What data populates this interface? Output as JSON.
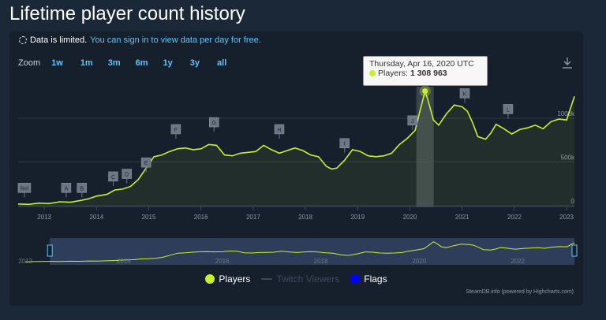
{
  "page": {
    "title": "Lifetime player count history"
  },
  "notice": {
    "text": "Data is limited.",
    "link": "You can sign in to view data per day for free."
  },
  "zoom": {
    "label": "Zoom",
    "buttons": [
      "1w",
      "1m",
      "3m",
      "6m",
      "1y",
      "3y",
      "all"
    ]
  },
  "tooltip": {
    "date": "Thursday, Apr 16, 2020 UTC",
    "series": "Players:",
    "value": "1 308 963"
  },
  "legend": {
    "players": "Players",
    "twitch": "Twitch Viewers",
    "flags": "Flags"
  },
  "credits": "SteamDB.info (powered by Highcharts.com)",
  "colors": {
    "players": "#c9f02c",
    "flags": "#0000ff",
    "link": "#66c0f4",
    "twitch_disabled": "#3b4a5a"
  },
  "icons": {
    "download": "download-icon",
    "notice": "dashed-circle-icon"
  },
  "chart_data": {
    "type": "line",
    "title": "Lifetime player count history",
    "ylim": [
      0,
      1450000
    ],
    "xlim": [
      2012.5,
      2023.15
    ],
    "y_ticks": [
      {
        "value": 0,
        "label": "0"
      },
      {
        "value": 500000,
        "label": "500k"
      },
      {
        "value": 1000000,
        "label": "1000k"
      }
    ],
    "x_ticks": [
      {
        "value": 2013,
        "label": "2013"
      },
      {
        "value": 2014,
        "label": "2014"
      },
      {
        "value": 2015,
        "label": "2015"
      },
      {
        "value": 2016,
        "label": "2016"
      },
      {
        "value": 2017,
        "label": "2017"
      },
      {
        "value": 2018,
        "label": "2018"
      },
      {
        "value": 2019,
        "label": "2019"
      },
      {
        "value": 2020,
        "label": "2020"
      },
      {
        "value": 2021,
        "label": "2021"
      },
      {
        "value": 2022,
        "label": "2022"
      },
      {
        "value": 2023,
        "label": "2023"
      }
    ],
    "navigator_labels": [
      {
        "value": 2012,
        "label": "2012"
      },
      {
        "value": 2014,
        "label": "2014"
      },
      {
        "value": 2016,
        "label": "2016"
      },
      {
        "value": 2018,
        "label": "2018"
      },
      {
        "value": 2020,
        "label": "2020"
      },
      {
        "value": 2022,
        "label": "2022"
      }
    ],
    "series": [
      {
        "name": "Players",
        "x": [
          2012.5,
          2012.7,
          2012.9,
          2013.1,
          2013.3,
          2013.5,
          2013.7,
          2013.85,
          2014.0,
          2014.2,
          2014.35,
          2014.5,
          2014.65,
          2014.8,
          2014.95,
          2015.1,
          2015.25,
          2015.4,
          2015.55,
          2015.7,
          2015.85,
          2016.0,
          2016.15,
          2016.3,
          2016.45,
          2016.6,
          2016.75,
          2016.9,
          2017.05,
          2017.2,
          2017.35,
          2017.5,
          2017.65,
          2017.8,
          2017.95,
          2018.1,
          2018.25,
          2018.4,
          2018.5,
          2018.6,
          2018.75,
          2018.9,
          2019.05,
          2019.2,
          2019.35,
          2019.5,
          2019.65,
          2019.8,
          2019.95,
          2020.1,
          2020.2,
          2020.29,
          2020.35,
          2020.45,
          2020.55,
          2020.7,
          2020.85,
          2021.0,
          2021.1,
          2021.2,
          2021.3,
          2021.45,
          2021.55,
          2021.65,
          2021.8,
          2021.95,
          2022.1,
          2022.25,
          2022.4,
          2022.55,
          2022.7,
          2022.85,
          2023.0,
          2023.15
        ],
        "values": [
          20000,
          15000,
          30000,
          25000,
          45000,
          40000,
          60000,
          80000,
          110000,
          130000,
          180000,
          190000,
          220000,
          300000,
          430000,
          560000,
          580000,
          620000,
          650000,
          660000,
          640000,
          650000,
          700000,
          690000,
          580000,
          570000,
          600000,
          610000,
          620000,
          690000,
          640000,
          600000,
          630000,
          660000,
          630000,
          580000,
          560000,
          450000,
          420000,
          430000,
          520000,
          640000,
          620000,
          570000,
          560000,
          570000,
          600000,
          700000,
          770000,
          860000,
          1100000,
          1308963,
          1200000,
          980000,
          920000,
          1050000,
          1150000,
          1130000,
          1080000,
          950000,
          790000,
          760000,
          830000,
          930000,
          880000,
          820000,
          870000,
          890000,
          920000,
          880000,
          960000,
          990000,
          980000,
          1250000
        ]
      }
    ],
    "highlight": {
      "x": 2020.29,
      "value": 1308963
    },
    "flags": [
      {
        "label": "Rel",
        "x": 2012.62,
        "y": 15
      },
      {
        "label": "A",
        "x": 2013.42,
        "y": 15
      },
      {
        "label": "B",
        "x": 2013.72,
        "y": 15
      },
      {
        "label": "C",
        "x": 2014.32,
        "y": 28
      },
      {
        "label": "D",
        "x": 2014.58,
        "y": 31
      },
      {
        "label": "E",
        "x": 2014.95,
        "y": 44
      },
      {
        "label": "F",
        "x": 2015.52,
        "y": 82
      },
      {
        "label": "G",
        "x": 2016.25,
        "y": 90
      },
      {
        "label": "H",
        "x": 2017.5,
        "y": 82
      },
      {
        "label": "I",
        "x": 2018.75,
        "y": 66
      },
      {
        "label": "J",
        "x": 2020.05,
        "y": 92
      },
      {
        "label": "K",
        "x": 2021.05,
        "y": 123
      },
      {
        "label": "L",
        "x": 2021.88,
        "y": 105
      }
    ]
  }
}
